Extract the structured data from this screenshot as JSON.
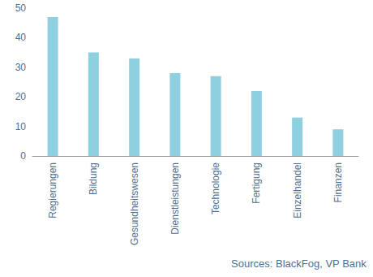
{
  "chart_data": {
    "type": "bar",
    "categories": [
      "Regierungen",
      "Bildung",
      "Gesundheitswesen",
      "Dienstleistungen",
      "Technologie",
      "Fertigung",
      "Einzelhandel",
      "Finanzen"
    ],
    "values": [
      47,
      35,
      33,
      28,
      27,
      22,
      13,
      9
    ],
    "color": "#8ecfe0",
    "ylim": [
      0,
      50
    ],
    "yticks": [
      0,
      10,
      20,
      30,
      40,
      50
    ],
    "grid": false,
    "annotations": [
      "Sources: BlackFog, VP Bank"
    ]
  }
}
